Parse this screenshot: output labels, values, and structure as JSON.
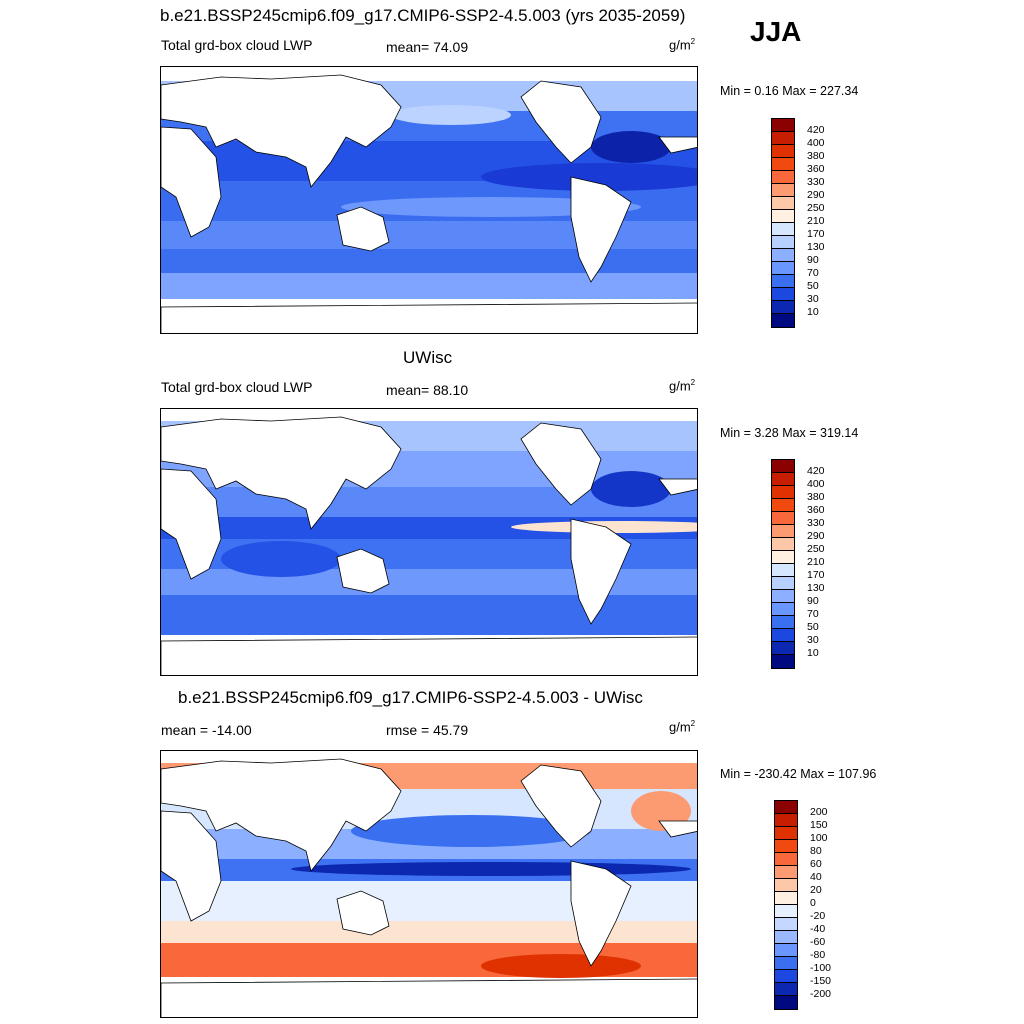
{
  "season_label": "JJA",
  "panels": [
    {
      "title": "b.e21.BSSP245cmip6.f09_g17.CMIP6-SSP2-4.5.003 (yrs 2035-2059)",
      "left_label": "Total grd-box cloud LWP",
      "center_label": "mean=  74.09",
      "units": "g/m",
      "units_exp": "2",
      "minmax": "Min =   0.16 Max = 227.34",
      "map_description_colors": [
        "#d6e6ff",
        "#a0c0ff",
        "#6a96ff",
        "#2e63f5",
        "#1d3fd8",
        "#0c1c9a"
      ],
      "colorbar": {
        "labels": [
          "420",
          "400",
          "380",
          "360",
          "330",
          "290",
          "250",
          "210",
          "170",
          "130",
          "90",
          "70",
          "50",
          "30",
          "10"
        ],
        "colors": [
          "#8b0000",
          "#c81e00",
          "#e03200",
          "#f04a10",
          "#f8683a",
          "#fc9a72",
          "#fdc8a8",
          "#fff0e2",
          "#d6e6ff",
          "#b8d0ff",
          "#8cb0ff",
          "#6a96ff",
          "#3a70f0",
          "#1d48e0",
          "#0c28b0",
          "#000a80"
        ]
      }
    },
    {
      "title": "UWisc",
      "left_label": "Total grd-box cloud LWP",
      "center_label": "mean=  88.10",
      "units": "g/m",
      "units_exp": "2",
      "minmax": "Min =   3.28 Max = 319.14",
      "colorbar": {
        "labels": [
          "420",
          "400",
          "380",
          "360",
          "330",
          "290",
          "250",
          "210",
          "170",
          "130",
          "90",
          "70",
          "50",
          "30",
          "10"
        ],
        "colors": [
          "#8b0000",
          "#c81e00",
          "#e03200",
          "#f04a10",
          "#f8683a",
          "#fc9a72",
          "#fdc8a8",
          "#fff0e2",
          "#d6e6ff",
          "#b8d0ff",
          "#8cb0ff",
          "#6a96ff",
          "#3a70f0",
          "#1d48e0",
          "#0c28b0",
          "#000a80"
        ]
      }
    },
    {
      "title": "b.e21.BSSP245cmip6.f09_g17.CMIP6-SSP2-4.5.003 - UWisc",
      "left_label": "mean = -14.00",
      "center_label": "rmse =  45.79",
      "units": "g/m",
      "units_exp": "2",
      "minmax": "Min = -230.42 Max = 107.96",
      "colorbar": {
        "labels": [
          "200",
          "150",
          "100",
          "80",
          "60",
          "40",
          "20",
          "0",
          "-20",
          "-40",
          "-60",
          "-80",
          "-100",
          "-150",
          "-200"
        ],
        "colors": [
          "#8b0000",
          "#c81e00",
          "#e03200",
          "#f04a10",
          "#f8683a",
          "#fc9a72",
          "#fdc8a8",
          "#fff0e2",
          "#e6f0ff",
          "#c4d8ff",
          "#9ab8ff",
          "#6a96ff",
          "#3a70f0",
          "#1d48e0",
          "#0c28b0",
          "#000a80"
        ]
      }
    }
  ]
}
